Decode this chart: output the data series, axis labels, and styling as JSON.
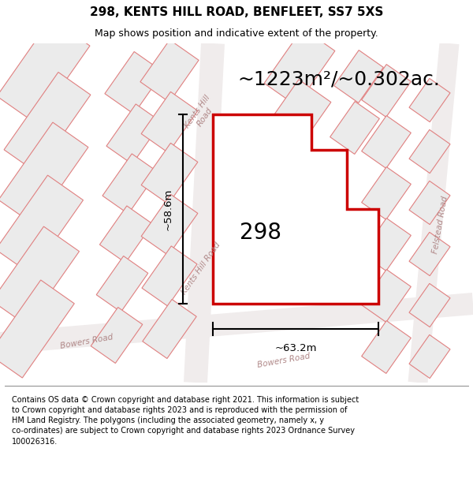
{
  "title": "298, KENTS HILL ROAD, BENFLEET, SS7 5XS",
  "subtitle": "Map shows position and indicative extent of the property.",
  "area_label": "~1223m²/~0.302ac.",
  "property_number": "298",
  "dim_width": "~63.2m",
  "dim_height": "~58.6m",
  "footer_text": "Contains OS data © Crown copyright and database right 2021. This information is subject to Crown copyright and database rights 2023 and is reproduced with the permission of HM Land Registry. The polygons (including the associated geometry, namely x, y co-ordinates) are subject to Crown copyright and database rights 2023 Ordnance Survey 100026316.",
  "map_bg": "#f7f4f4",
  "bld_fc": "#ebebeb",
  "bld_ec": "#e08080",
  "road_label_color": "#b08888",
  "prop_fc": "#ffffff",
  "prop_ec": "#cc0000",
  "figsize": [
    6.0,
    6.25
  ],
  "dpi": 100,
  "title_fontsize": 11,
  "subtitle_fontsize": 9,
  "area_fontsize": 18,
  "prop_num_fontsize": 20,
  "road_label_fontsize": 7.5,
  "dim_fontsize": 9.5,
  "footer_fontsize": 7.0
}
